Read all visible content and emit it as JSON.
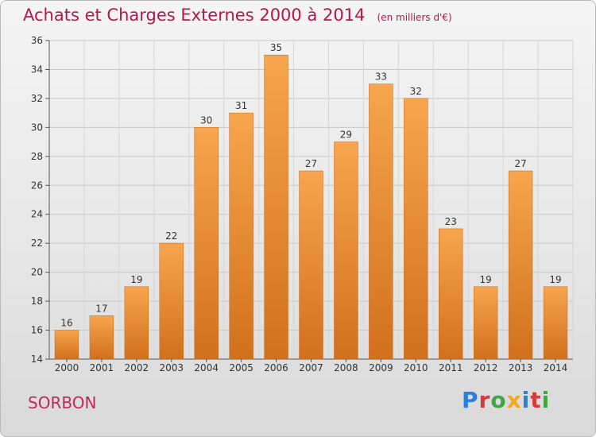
{
  "header": {
    "title": "Achats et Charges Externes 2000 à 2014",
    "unit": "(en milliers d'€)"
  },
  "footer": {
    "commune": "SORBON",
    "logo": [
      "P",
      "r",
      "o",
      "x",
      "i",
      "t",
      "i"
    ]
  },
  "colors": {
    "title": "#b5174a",
    "bar_light": "#f7a54e",
    "bar_dark": "#d2701c"
  },
  "chart_data": {
    "type": "bar",
    "title": "Achats et Charges Externes 2000 à 2014",
    "xlabel": "",
    "ylabel": "",
    "categories": [
      "2000",
      "2001",
      "2002",
      "2003",
      "2004",
      "2005",
      "2006",
      "2007",
      "2008",
      "2009",
      "2010",
      "2011",
      "2012",
      "2013",
      "2014"
    ],
    "values": [
      16,
      17,
      19,
      22,
      30,
      31,
      35,
      27,
      29,
      33,
      32,
      23,
      19,
      27,
      19
    ],
    "ylim": [
      14,
      36
    ],
    "yticks": [
      14,
      16,
      18,
      20,
      22,
      24,
      26,
      28,
      30,
      32,
      34,
      36
    ],
    "grid": true,
    "legend": "none"
  }
}
